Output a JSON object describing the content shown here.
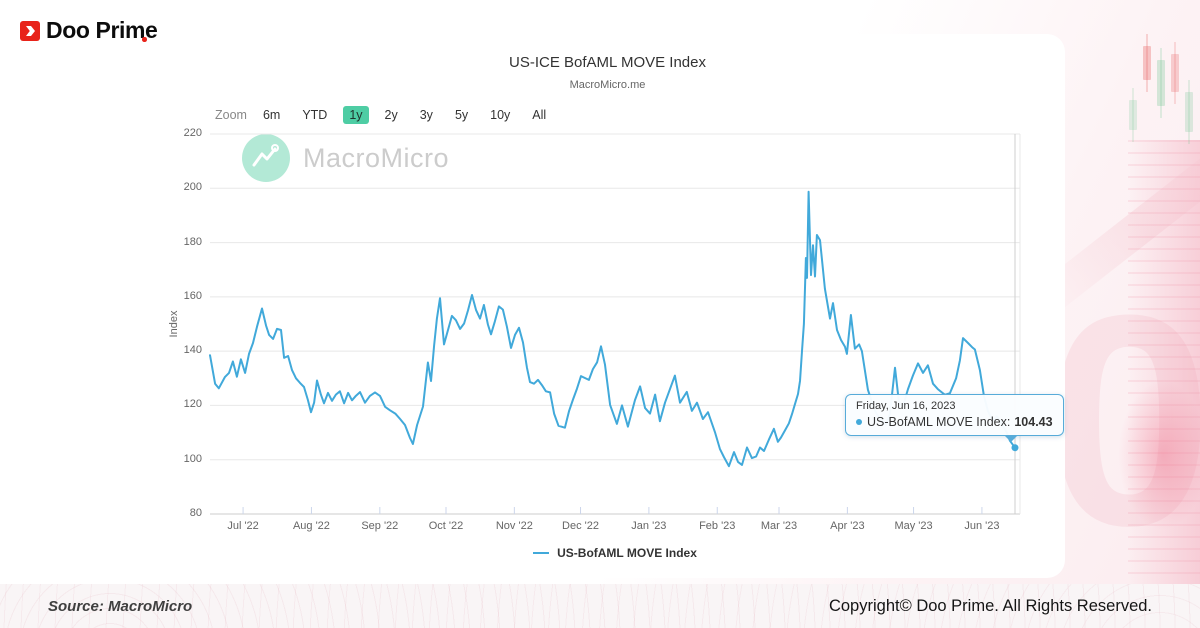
{
  "brand": {
    "name": "Doo Prime"
  },
  "footer": {
    "source": "Source: MacroMicro",
    "copyright": "Copyright© Doo Prime. All Rights Reserved."
  },
  "chart": {
    "title": "US-ICE BofAML MOVE Index",
    "subtitle": "MacroMicro.me",
    "watermark": "MacroMicro",
    "y_axis_title": "Index",
    "zoom_label": "Zoom",
    "ranges": [
      {
        "label": "6m",
        "selected": false
      },
      {
        "label": "YTD",
        "selected": false
      },
      {
        "label": "1y",
        "selected": true
      },
      {
        "label": "2y",
        "selected": false
      },
      {
        "label": "3y",
        "selected": false
      },
      {
        "label": "5y",
        "selected": false
      },
      {
        "label": "10y",
        "selected": false
      },
      {
        "label": "All",
        "selected": false
      }
    ],
    "legend": "US-BofAML MOVE Index",
    "tooltip": {
      "date": "Friday, Jun 16, 2023",
      "series_label": "US-BofAML MOVE Index:",
      "value": "104.43"
    },
    "colors": {
      "line": "#41a9da",
      "range_selected_bg": "#4ecda4",
      "tooltip_border": "#57abd9",
      "brand_red": "#e8231a"
    }
  },
  "chart_data": {
    "type": "line",
    "title": "US-ICE BofAML MOVE Index",
    "subtitle": "MacroMicro.me",
    "xlabel": "",
    "ylabel": "Index",
    "ylim": [
      80,
      220
    ],
    "xlim_days": [
      0,
      365
    ],
    "x_start_date": "Jun 16, 2022",
    "grid": true,
    "legend_position": "bottom",
    "y_ticks": [
      80,
      100,
      120,
      140,
      160,
      180,
      200,
      220
    ],
    "x_ticks": [
      {
        "label": "Jul '22",
        "day": 15
      },
      {
        "label": "Aug '22",
        "day": 46
      },
      {
        "label": "Sep '22",
        "day": 77
      },
      {
        "label": "Oct '22",
        "day": 107
      },
      {
        "label": "Nov '22",
        "day": 138
      },
      {
        "label": "Dec '22",
        "day": 168
      },
      {
        "label": "Jan '23",
        "day": 199
      },
      {
        "label": "Feb '23",
        "day": 230
      },
      {
        "label": "Mar '23",
        "day": 258
      },
      {
        "label": "Apr '23",
        "day": 289
      },
      {
        "label": "May '23",
        "day": 319
      },
      {
        "label": "Jun '23",
        "day": 350
      }
    ],
    "last_point": {
      "date": "Friday, Jun 16, 2023",
      "value": 104.43
    },
    "series": [
      {
        "name": "US-BofAML MOVE Index",
        "points": [
          [
            0,
            138.5
          ],
          [
            2.3,
            128
          ],
          [
            4,
            126.3
          ],
          [
            6.8,
            130.5
          ],
          [
            8.6,
            132
          ],
          [
            10.4,
            136.2
          ],
          [
            12.2,
            130.6
          ],
          [
            14,
            137
          ],
          [
            15.9,
            132
          ],
          [
            17.7,
            139
          ],
          [
            19.5,
            143
          ],
          [
            21.3,
            149
          ],
          [
            23.6,
            155.7
          ],
          [
            25.4,
            149.5
          ],
          [
            26.8,
            146
          ],
          [
            28.6,
            144.5
          ],
          [
            30.4,
            148.2
          ],
          [
            32.2,
            147.8
          ],
          [
            33.6,
            137.5
          ],
          [
            35.4,
            138.2
          ],
          [
            37.2,
            133
          ],
          [
            39,
            130
          ],
          [
            40.8,
            128.3
          ],
          [
            42.6,
            126.8
          ],
          [
            44.4,
            122
          ],
          [
            45.8,
            117.5
          ],
          [
            47.2,
            121
          ],
          [
            48.5,
            129.2
          ],
          [
            50.3,
            124
          ],
          [
            51.7,
            120.8
          ],
          [
            53.5,
            124.6
          ],
          [
            55.3,
            121.7
          ],
          [
            57.1,
            124
          ],
          [
            58.9,
            125.2
          ],
          [
            60.8,
            120.8
          ],
          [
            62.6,
            124.6
          ],
          [
            64.4,
            121.9
          ],
          [
            66.2,
            123.6
          ],
          [
            68,
            124.9
          ],
          [
            70.3,
            121
          ],
          [
            72.5,
            123.5
          ],
          [
            74.8,
            124.8
          ],
          [
            77.1,
            123.5
          ],
          [
            79.4,
            119.5
          ],
          [
            81.6,
            118.2
          ],
          [
            84,
            117
          ],
          [
            86.2,
            115
          ],
          [
            88.4,
            112.8
          ],
          [
            90.7,
            108
          ],
          [
            92,
            105.8
          ],
          [
            93.9,
            112.8
          ],
          [
            96.6,
            119.6
          ],
          [
            98.8,
            135.8
          ],
          [
            100.2,
            129
          ],
          [
            101.6,
            142
          ],
          [
            102.9,
            152
          ],
          [
            104.3,
            159.5
          ],
          [
            106.1,
            142.5
          ],
          [
            107.9,
            147.8
          ],
          [
            109.7,
            153
          ],
          [
            111.5,
            151.4
          ],
          [
            113.4,
            148.2
          ],
          [
            115.2,
            150.2
          ],
          [
            117,
            155
          ],
          [
            118.8,
            160.7
          ],
          [
            120.6,
            155.2
          ],
          [
            122.4,
            152
          ],
          [
            124.2,
            157
          ],
          [
            126,
            149.8
          ],
          [
            127.4,
            146.2
          ],
          [
            129.2,
            151
          ],
          [
            131,
            156.5
          ],
          [
            132.8,
            155.3
          ],
          [
            134.6,
            149
          ],
          [
            136.5,
            141.2
          ],
          [
            138.3,
            146
          ],
          [
            140.1,
            148.6
          ],
          [
            141.9,
            143.2
          ],
          [
            143.7,
            134
          ],
          [
            145.1,
            128.6
          ],
          [
            146.9,
            128
          ],
          [
            148.7,
            129.4
          ],
          [
            150.5,
            127.5
          ],
          [
            152.3,
            125.2
          ],
          [
            154.2,
            124.8
          ],
          [
            156,
            117
          ],
          [
            158,
            112.5
          ],
          [
            160.9,
            111.8
          ],
          [
            162.8,
            118
          ],
          [
            164.6,
            122.2
          ],
          [
            166.4,
            126.2
          ],
          [
            168.2,
            130.8
          ],
          [
            170,
            130.1
          ],
          [
            171.8,
            129.4
          ],
          [
            173.6,
            133.4
          ],
          [
            175.5,
            135.9
          ],
          [
            177.3,
            141.8
          ],
          [
            179.1,
            135
          ],
          [
            181.4,
            120.2
          ],
          [
            184.5,
            113.2
          ],
          [
            186.8,
            120
          ],
          [
            189.5,
            112.2
          ],
          [
            192.7,
            122
          ],
          [
            195,
            127
          ],
          [
            197.3,
            119
          ],
          [
            199.5,
            117
          ],
          [
            201.8,
            124
          ],
          [
            204,
            114.2
          ],
          [
            206.3,
            121
          ],
          [
            210.8,
            131
          ],
          [
            213.1,
            121
          ],
          [
            216.2,
            125
          ],
          [
            218.5,
            118
          ],
          [
            220.8,
            121
          ],
          [
            223.5,
            115
          ],
          [
            225.8,
            117.5
          ],
          [
            229,
            110
          ],
          [
            231.2,
            104
          ],
          [
            233,
            101
          ],
          [
            235.3,
            97.6
          ],
          [
            237.6,
            102.8
          ],
          [
            239.4,
            99.2
          ],
          [
            241.2,
            98.1
          ],
          [
            243.5,
            104.5
          ],
          [
            245.7,
            100.6
          ],
          [
            247.6,
            101.2
          ],
          [
            249.4,
            104.5
          ],
          [
            251.2,
            103.2
          ],
          [
            253.4,
            107.4
          ],
          [
            255.7,
            111.4
          ],
          [
            257.5,
            106.6
          ],
          [
            258.9,
            108.2
          ],
          [
            260.7,
            110.8
          ],
          [
            262.5,
            113.4
          ],
          [
            263.9,
            116.8
          ],
          [
            265.2,
            120.4
          ],
          [
            266.6,
            124.2
          ],
          [
            267.5,
            129
          ],
          [
            268.4,
            140
          ],
          [
            269.3,
            150
          ],
          [
            270.2,
            174.3
          ],
          [
            270.7,
            167
          ],
          [
            271.4,
            198.7
          ],
          [
            272.5,
            168
          ],
          [
            273.4,
            179
          ],
          [
            274.3,
            167.5
          ],
          [
            275.2,
            182.8
          ],
          [
            276.6,
            180.9
          ],
          [
            278.8,
            163
          ],
          [
            281.1,
            152
          ],
          [
            282.5,
            157.7
          ],
          [
            284.3,
            147.8
          ],
          [
            286.1,
            144.1
          ],
          [
            287.9,
            141.6
          ],
          [
            288.8,
            139
          ],
          [
            290.6,
            153.3
          ],
          [
            292.4,
            140.9
          ],
          [
            294.3,
            142.5
          ],
          [
            295.6,
            140
          ],
          [
            298.3,
            125.8
          ],
          [
            300.2,
            121
          ],
          [
            302,
            117.2
          ],
          [
            304.3,
            114.8
          ],
          [
            306.5,
            112.9
          ],
          [
            308.3,
            117
          ],
          [
            310.6,
            133.9
          ],
          [
            312.4,
            121
          ],
          [
            314.2,
            119.8
          ],
          [
            316.5,
            126
          ],
          [
            318.7,
            131
          ],
          [
            321,
            135.5
          ],
          [
            323.3,
            132
          ],
          [
            325.5,
            134.8
          ],
          [
            327.8,
            128
          ],
          [
            330,
            126
          ],
          [
            333.2,
            123.9
          ],
          [
            335.5,
            124.5
          ],
          [
            338.3,
            130
          ],
          [
            340,
            136.6
          ],
          [
            341.4,
            144.8
          ],
          [
            343.7,
            143
          ],
          [
            345.5,
            141.5
          ],
          [
            346.8,
            140.6
          ],
          [
            349.1,
            133
          ],
          [
            350.9,
            123.6
          ],
          [
            352.7,
            118
          ],
          [
            355,
            114.2
          ],
          [
            356.8,
            116
          ],
          [
            359.1,
            113.2
          ],
          [
            361.3,
            110
          ],
          [
            362.7,
            107
          ],
          [
            365,
            104.43
          ]
        ]
      }
    ]
  }
}
